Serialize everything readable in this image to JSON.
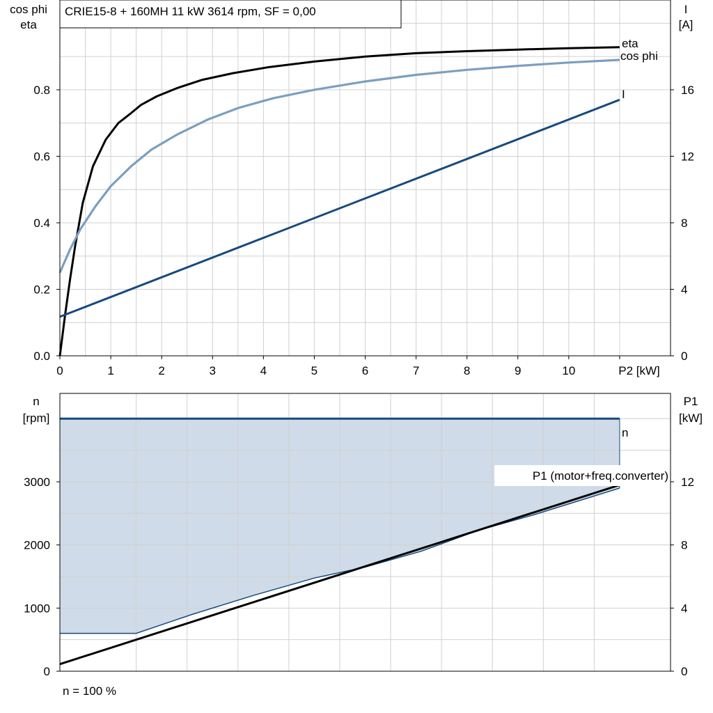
{
  "colors": {
    "eta": "#000000",
    "cosphi": "#7b9fc0",
    "current": "#174a7c",
    "speed": "#174a7c",
    "p1": "#000000",
    "band_fill": "#cfdbe8",
    "band_line": "#174a7c",
    "grid": "#d0d0d0"
  },
  "chart_data": [
    {
      "type": "line",
      "title": "CRIE15-8 + 160MH   11 kW   3614 rpm, SF = 0,00",
      "xlabel": "P2 [kW]",
      "ylabel_left": [
        "cos phi",
        "eta"
      ],
      "ylabel_right": [
        "I",
        "[A]"
      ],
      "xlim": [
        0,
        12
      ],
      "ylim_left": [
        0,
        1.07
      ],
      "ylim_right": [
        0,
        21.4
      ],
      "x_ticks": [
        "0",
        "1",
        "2",
        "3",
        "4",
        "5",
        "6",
        "7",
        "8",
        "9",
        "10"
      ],
      "x_tick_values": [
        0,
        1,
        2,
        3,
        4,
        5,
        6,
        7,
        8,
        9,
        10
      ],
      "y_left_ticks": [
        "0.0",
        "0.2",
        "0.4",
        "0.6",
        "0.8"
      ],
      "y_left_tick_values": [
        0,
        0.2,
        0.4,
        0.6,
        0.8
      ],
      "y_right_ticks": [
        "0",
        "4",
        "8",
        "12",
        "16"
      ],
      "y_right_tick_values": [
        0,
        4,
        8,
        12,
        16
      ],
      "grid": true,
      "series": [
        {
          "name": "eta",
          "axis": "left",
          "x": [
            0,
            0.1,
            0.2,
            0.3,
            0.45,
            0.65,
            0.9,
            1.15,
            1.4,
            1.6,
            1.9,
            2.3,
            2.8,
            3.4,
            4.1,
            5,
            6,
            7,
            8,
            9,
            10,
            11
          ],
          "y": [
            0,
            0.12,
            0.23,
            0.33,
            0.46,
            0.57,
            0.65,
            0.7,
            0.73,
            0.755,
            0.78,
            0.805,
            0.83,
            0.85,
            0.868,
            0.885,
            0.9,
            0.91,
            0.916,
            0.921,
            0.925,
            0.928
          ]
        },
        {
          "name": "cos phi",
          "axis": "left",
          "x": [
            0,
            0.2,
            0.4,
            0.7,
            1,
            1.4,
            1.8,
            2.3,
            2.9,
            3.5,
            4.2,
            5,
            6,
            7,
            8,
            9,
            10,
            11
          ],
          "y": [
            0.25,
            0.32,
            0.38,
            0.45,
            0.51,
            0.57,
            0.62,
            0.665,
            0.71,
            0.745,
            0.775,
            0.8,
            0.825,
            0.845,
            0.86,
            0.872,
            0.882,
            0.89
          ]
        },
        {
          "name": "I",
          "axis": "right",
          "x": [
            0,
            11
          ],
          "y": [
            2.35,
            15.4
          ]
        }
      ]
    },
    {
      "type": "line",
      "ylabel_left": [
        "n",
        "[rpm]"
      ],
      "ylabel_right": [
        "P1",
        "[kW]"
      ],
      "xlim": [
        0,
        12
      ],
      "ylim_left": [
        0,
        4400
      ],
      "ylim_right": [
        0,
        17.6
      ],
      "y_left_ticks": [
        "0",
        "1000",
        "2000",
        "3000"
      ],
      "y_left_tick_values": [
        0,
        1000,
        2000,
        3000
      ],
      "y_right_ticks": [
        "0",
        "4",
        "8",
        "12"
      ],
      "y_right_tick_values": [
        0,
        4,
        8,
        12
      ],
      "grid": true,
      "series": [
        {
          "name": "n",
          "axis": "left",
          "x": [
            0,
            11
          ],
          "y": [
            4000,
            4000
          ]
        },
        {
          "name": "P1 (motor+freq.converter)",
          "axis": "right",
          "x": [
            0,
            11
          ],
          "y": [
            0.45,
            11.8
          ]
        },
        {
          "name": "",
          "axis": "right",
          "role": "lower-boundary",
          "x": [
            0,
            1.5,
            2.6,
            3.8,
            5,
            6,
            7.1,
            8.2,
            9.3,
            11
          ],
          "y": [
            2.4,
            2.4,
            3.6,
            4.8,
            5.9,
            6.6,
            7.6,
            8.9,
            9.9,
            11.6
          ]
        }
      ],
      "annotation": "n = 100 %"
    }
  ]
}
